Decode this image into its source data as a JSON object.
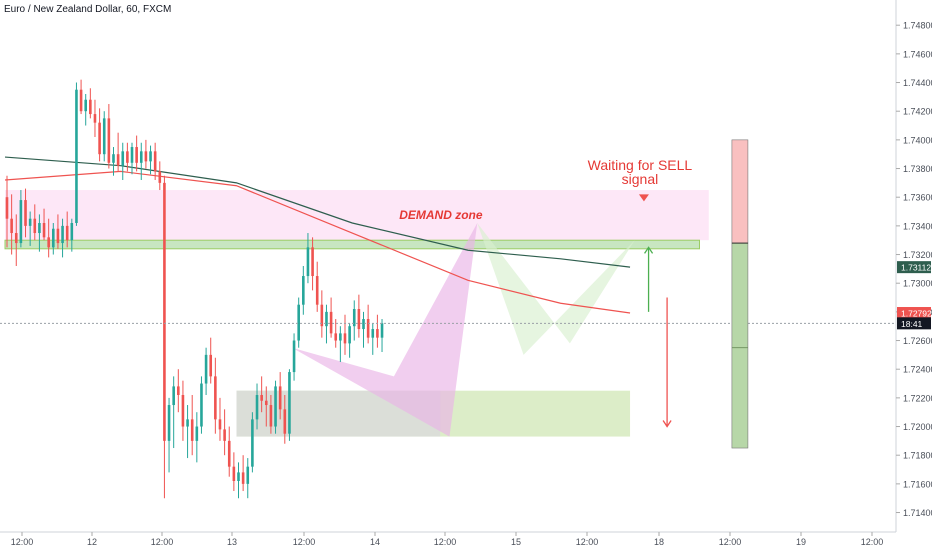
{
  "header": {
    "title": "Euro / New Zealand Dollar, 60, FXCM"
  },
  "price_axis": {
    "ticks": [
      "1.74800",
      "1.74600",
      "1.74400",
      "1.74200",
      "1.74000",
      "1.73800",
      "1.73600",
      "1.73400",
      "1.73200",
      "1.73000",
      "1.72800",
      "1.72600",
      "1.72400",
      "1.72200",
      "1.72000",
      "1.71800",
      "1.71600",
      "1.71400"
    ],
    "labels": [
      {
        "text": "1.73112",
        "value": 1.73112,
        "color": "#2e5e4e",
        "name": "ma-slow-label"
      },
      {
        "text": "1.72792",
        "value": 1.72792,
        "color": "#ef5350",
        "name": "ma-fast-label"
      },
      {
        "text": "18:41",
        "value": 1.7272,
        "color": "#131722",
        "name": "countdown-label"
      }
    ]
  },
  "time_axis": {
    "ticks": [
      "12:00",
      "12",
      "12:00",
      "13",
      "12:00",
      "14",
      "12:00",
      "15",
      "12:00",
      "18",
      "12:00",
      "19",
      "12:00"
    ]
  },
  "annotations": {
    "demand_zone": "DEMAND zone",
    "sell_line1": "Waiting for SELL",
    "sell_line2": "signal"
  },
  "chart_data": {
    "type": "candlestick",
    "symbol": "EURNZD",
    "timeframe": "60",
    "y_range": [
      1.7132,
      1.7492
    ],
    "last_price": 1.7272,
    "candles": [
      [
        1.736,
        1.7375,
        1.7325,
        1.7345
      ],
      [
        1.7345,
        1.7362,
        1.732,
        1.7335
      ],
      [
        1.7335,
        1.7348,
        1.7312,
        1.7328
      ],
      [
        1.7328,
        1.7365,
        1.7325,
        1.7358
      ],
      [
        1.7358,
        1.7366,
        1.7332,
        1.734
      ],
      [
        1.734,
        1.735,
        1.7326,
        1.7345
      ],
      [
        1.7345,
        1.7355,
        1.733,
        1.7335
      ],
      [
        1.7335,
        1.7348,
        1.7322,
        1.7342
      ],
      [
        1.7342,
        1.7352,
        1.733,
        1.7332
      ],
      [
        1.7332,
        1.7345,
        1.7318,
        1.7325
      ],
      [
        1.7325,
        1.7342,
        1.732,
        1.7338
      ],
      [
        1.7338,
        1.7348,
        1.7324,
        1.7328
      ],
      [
        1.7328,
        1.7345,
        1.7318,
        1.734
      ],
      [
        1.734,
        1.735,
        1.7325,
        1.733
      ],
      [
        1.733,
        1.7345,
        1.7322,
        1.7342
      ],
      [
        1.7342,
        1.744,
        1.734,
        1.7435
      ],
      [
        1.7435,
        1.7442,
        1.7418,
        1.742
      ],
      [
        1.742,
        1.7432,
        1.741,
        1.7428
      ],
      [
        1.7428,
        1.7436,
        1.7415,
        1.7418
      ],
      [
        1.7418,
        1.7428,
        1.7402,
        1.7412
      ],
      [
        1.7412,
        1.7422,
        1.7385,
        1.739
      ],
      [
        1.739,
        1.742,
        1.7385,
        1.7415
      ],
      [
        1.7415,
        1.7425,
        1.738,
        1.7384
      ],
      [
        1.7384,
        1.7395,
        1.7375,
        1.739
      ],
      [
        1.739,
        1.7405,
        1.7378,
        1.7382
      ],
      [
        1.7382,
        1.7398,
        1.7372,
        1.7392
      ],
      [
        1.7392,
        1.7398,
        1.7378,
        1.7384
      ],
      [
        1.7384,
        1.7398,
        1.7376,
        1.7395
      ],
      [
        1.7395,
        1.7403,
        1.7378,
        1.7384
      ],
      [
        1.7384,
        1.7398,
        1.7372,
        1.7392
      ],
      [
        1.7392,
        1.74,
        1.738,
        1.7385
      ],
      [
        1.7385,
        1.7396,
        1.7376,
        1.7392
      ],
      [
        1.7392,
        1.7398,
        1.7372,
        1.7378
      ],
      [
        1.7378,
        1.7385,
        1.7365,
        1.737
      ],
      [
        1.737,
        1.7375,
        1.715,
        1.719
      ],
      [
        1.719,
        1.722,
        1.7168,
        1.7215
      ],
      [
        1.7215,
        1.7235,
        1.7185,
        1.7228
      ],
      [
        1.7228,
        1.724,
        1.721,
        1.7222
      ],
      [
        1.7222,
        1.7232,
        1.719,
        1.72
      ],
      [
        1.72,
        1.7215,
        1.7178,
        1.7205
      ],
      [
        1.7205,
        1.7222,
        1.718,
        1.719
      ],
      [
        1.719,
        1.721,
        1.7175,
        1.72
      ],
      [
        1.72,
        1.7235,
        1.7195,
        1.723
      ],
      [
        1.723,
        1.7255,
        1.7222,
        1.725
      ],
      [
        1.725,
        1.7262,
        1.723,
        1.7235
      ],
      [
        1.7235,
        1.7248,
        1.7195,
        1.7205
      ],
      [
        1.7205,
        1.722,
        1.719,
        1.7198
      ],
      [
        1.7198,
        1.7212,
        1.718,
        1.719
      ],
      [
        1.719,
        1.72,
        1.7165,
        1.7172
      ],
      [
        1.7172,
        1.7182,
        1.7155,
        1.7162
      ],
      [
        1.7162,
        1.7175,
        1.715,
        1.7168
      ],
      [
        1.7168,
        1.718,
        1.7155,
        1.716
      ],
      [
        1.716,
        1.7178,
        1.715,
        1.7172
      ],
      [
        1.7172,
        1.721,
        1.7168,
        1.7205
      ],
      [
        1.7205,
        1.723,
        1.7198,
        1.7222
      ],
      [
        1.7222,
        1.7235,
        1.721,
        1.7218
      ],
      [
        1.7218,
        1.7228,
        1.72,
        1.7215
      ],
      [
        1.7215,
        1.7222,
        1.7195,
        1.72
      ],
      [
        1.72,
        1.7232,
        1.7195,
        1.7228
      ],
      [
        1.7228,
        1.7238,
        1.7205,
        1.7212
      ],
      [
        1.7212,
        1.7222,
        1.7188,
        1.7195
      ],
      [
        1.7195,
        1.724,
        1.719,
        1.7238
      ],
      [
        1.7238,
        1.7265,
        1.7232,
        1.726
      ],
      [
        1.726,
        1.729,
        1.7255,
        1.7285
      ],
      [
        1.7285,
        1.7312,
        1.7278,
        1.7305
      ],
      [
        1.7305,
        1.7335,
        1.73,
        1.7325
      ],
      [
        1.7325,
        1.7332,
        1.7295,
        1.7305
      ],
      [
        1.7305,
        1.7315,
        1.728,
        1.7285
      ],
      [
        1.7285,
        1.7295,
        1.7262,
        1.727
      ],
      [
        1.727,
        1.7285,
        1.7258,
        1.728
      ],
      [
        1.728,
        1.729,
        1.7262,
        1.7265
      ],
      [
        1.7265,
        1.7275,
        1.7255,
        1.726
      ],
      [
        1.726,
        1.727,
        1.7245,
        1.7265
      ],
      [
        1.7265,
        1.7278,
        1.725,
        1.7258
      ],
      [
        1.7258,
        1.7272,
        1.7248,
        1.727
      ],
      [
        1.727,
        1.7288,
        1.726,
        1.7282
      ],
      [
        1.7282,
        1.7292,
        1.7262,
        1.7268
      ],
      [
        1.7268,
        1.728,
        1.7255,
        1.7275
      ],
      [
        1.7275,
        1.7285,
        1.7258,
        1.7262
      ],
      [
        1.7262,
        1.7272,
        1.725,
        1.7268
      ],
      [
        1.7268,
        1.7278,
        1.7255,
        1.7262
      ],
      [
        1.7262,
        1.7275,
        1.7252,
        1.7272
      ]
    ],
    "moving_averages": [
      {
        "name": "slow MA",
        "color": "#2e5e4e",
        "points": [
          [
            0,
            1.7388
          ],
          [
            25,
            1.7382
          ],
          [
            50,
            1.737
          ],
          [
            75,
            1.7342
          ],
          [
            100,
            1.7323
          ],
          [
            120,
            1.7317
          ],
          [
            135,
            1.73112
          ]
        ]
      },
      {
        "name": "fast MA",
        "color": "#ef5350",
        "points": [
          [
            0,
            1.7372
          ],
          [
            25,
            1.7378
          ],
          [
            50,
            1.7368
          ],
          [
            75,
            1.7335
          ],
          [
            100,
            1.7302
          ],
          [
            120,
            1.7286
          ],
          [
            135,
            1.72792
          ]
        ]
      }
    ],
    "zones": [
      {
        "name": "demand-zone",
        "fill": "#fde7f7",
        "t": [
          0,
          152
        ],
        "p": [
          1.733,
          1.7365
        ]
      },
      {
        "name": "green-zone-upper",
        "fill": "#c8e6c1",
        "stroke": "#9ccc65",
        "t": [
          0,
          150
        ],
        "p": [
          1.7324,
          1.733
        ]
      },
      {
        "name": "green-zone-lower",
        "fill": "#dcedc8",
        "t": [
          50,
          135
        ],
        "p": [
          1.7193,
          1.7225
        ]
      },
      {
        "name": "gray-zone",
        "fill": "#dadada",
        "t": [
          50,
          94
        ],
        "p": [
          1.7193,
          1.7225
        ]
      }
    ],
    "patterns": [
      {
        "name": "pink-harmonic-pattern",
        "fill": "#e9b3e6",
        "points": [
          [
            62,
            1.7255
          ],
          [
            84,
            1.7235
          ],
          [
            102,
            1.7342
          ],
          [
            96,
            1.7193
          ]
        ]
      },
      {
        "name": "green-harmonic-pattern",
        "fill": "#d9efcf",
        "points": [
          [
            102,
            1.7342
          ],
          [
            112,
            1.725
          ],
          [
            136,
            1.733
          ],
          [
            122,
            1.7258
          ]
        ]
      }
    ],
    "arrows": [
      {
        "name": "up-arrow",
        "color": "#4caf50",
        "from": [
          139,
          1.728
        ],
        "to": [
          139,
          1.7325
        ]
      },
      {
        "name": "down-arrow",
        "color": "#ef5350",
        "from": [
          143,
          1.729
        ],
        "to": [
          143,
          1.72
        ]
      },
      {
        "name": "sell-arrow-marker",
        "color": "#ef5350",
        "at": [
          138,
          1.7362
        ]
      }
    ],
    "position_tool": {
      "t": 157,
      "entry": 1.7328,
      "stop": 1.74,
      "target": 1.7185,
      "mid": 1.7255
    },
    "up_color": "#26a69a",
    "down_color": "#ef5350"
  }
}
